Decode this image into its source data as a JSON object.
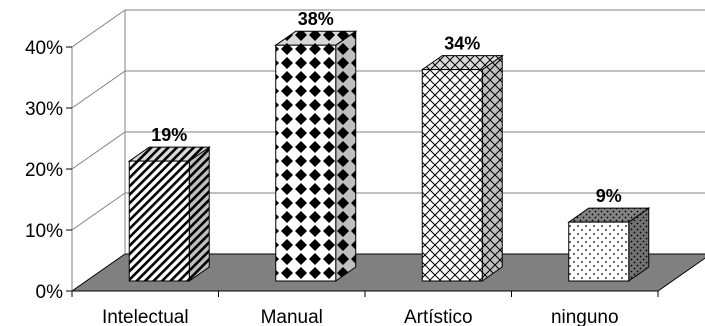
{
  "chart_data": {
    "type": "bar",
    "style": "3d-column",
    "categories": [
      "Intelectual",
      "Manual",
      "Artístico",
      "ninguno"
    ],
    "values": [
      19,
      38,
      34,
      9
    ],
    "data_labels": [
      "19%",
      "38%",
      "34%",
      "9%"
    ],
    "y_ticks": [
      "0%",
      "10%",
      "20%",
      "30%",
      "40%"
    ],
    "ylim": [
      0,
      40
    ],
    "grid": true,
    "legend": "none",
    "title": "",
    "xlabel": "",
    "ylabel": "",
    "colors": {
      "floor": "#808080",
      "wall_lines": "#808080",
      "bar_fill": "#ffffff",
      "bar_pattern": "#000000"
    }
  }
}
